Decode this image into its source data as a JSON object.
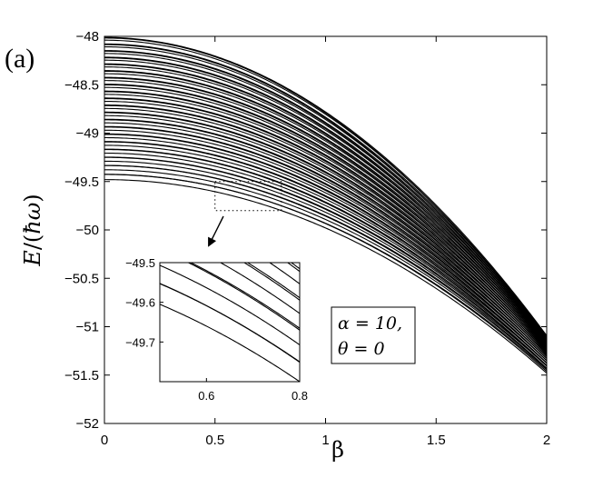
{
  "panel_label": "(a)",
  "chart_data": [
    {
      "type": "line",
      "name": "main-plot",
      "xlabel": "β",
      "ylabel": "E/(ħω)",
      "xlim": [
        0,
        2
      ],
      "ylim": [
        -52,
        -48
      ],
      "xticks": [
        0,
        0.5,
        1,
        1.5,
        2
      ],
      "xtick_labels": [
        "0",
        "0.5",
        "1",
        "1.5",
        "2"
      ],
      "yticks": [
        -52,
        -51.5,
        -51,
        -50.5,
        -50,
        -49.5,
        -49,
        -48.5,
        -48
      ],
      "ytick_labels": [
        "−52",
        "−51.5",
        "−51",
        "−50.5",
        "−50",
        "−49.5",
        "−49",
        "−48.5",
        "−48"
      ],
      "grid": false,
      "line_color": "#000000",
      "curve_model": "E = E0 - c·β²",
      "curve_count": 60,
      "E0_at_beta0": {
        "min": -49.48,
        "max": -48.0
      },
      "E_at_beta2_lowest": -51.48,
      "annotation": {
        "alpha_line": "α = 10,",
        "theta_line": "θ = 0"
      },
      "zoom_region": {
        "x": [
          0.5,
          0.8
        ],
        "y": [
          -49.8,
          -49.5
        ]
      }
    },
    {
      "type": "line",
      "name": "inset",
      "xlim": [
        0.5,
        0.8
      ],
      "ylim": [
        -49.8,
        -49.5
      ],
      "xticks": [
        0.6,
        0.8
      ],
      "xtick_labels": [
        "0.6",
        "0.8"
      ],
      "yticks": [
        -49.7,
        -49.6,
        -49.5
      ],
      "ytick_labels": [
        "−49.7",
        "−49.6",
        "−49.5"
      ],
      "grid": false,
      "line_color": "#000000"
    }
  ]
}
